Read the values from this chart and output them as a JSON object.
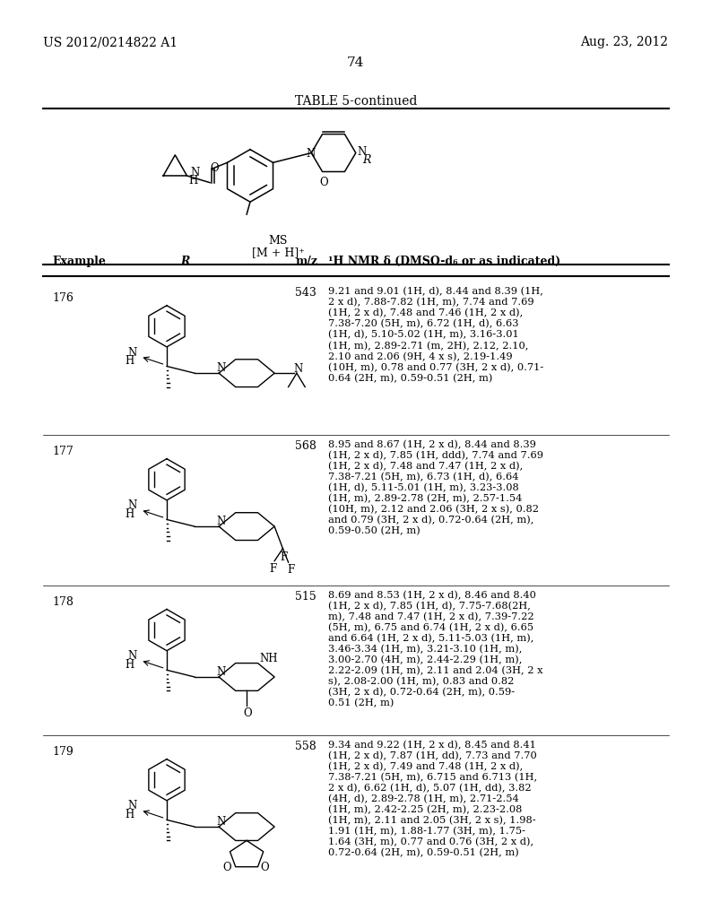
{
  "bg_color": "#ffffff",
  "header_left": "US 2012/0214822 A1",
  "header_right": "Aug. 23, 2012",
  "page_number": "74",
  "table_title": "TABLE 5-continued",
  "rows": [
    {
      "example": "176",
      "mz": "543",
      "nmr": "9.21 and 9.01 (1H, d), 8.44 and 8.39 (1H,\n2 x d), 7.88-7.82 (1H, m), 7.74 and 7.69\n(1H, 2 x d), 7.48 and 7.46 (1H, 2 x d),\n7.38-7.20 (5H, m), 6.72 (1H, d), 6.63\n(1H, d), 5.10-5.02 (1H, m), 3.16-3.01\n(1H, m), 2.89-2.71 (m, 2H), 2.12, 2.10,\n2.10 and 2.06 (9H, 4 x s), 2.19-1.49\n(10H, m), 0.78 and 0.77 (3H, 2 x d), 0.71-\n0.64 (2H, m), 0.59-0.51 (2H, m)"
    },
    {
      "example": "177",
      "mz": "568",
      "nmr": "8.95 and 8.67 (1H, 2 x d), 8.44 and 8.39\n(1H, 2 x d), 7.85 (1H, ddd), 7.74 and 7.69\n(1H, 2 x d), 7.48 and 7.47 (1H, 2 x d),\n7.38-7.21 (5H, m), 6.73 (1H, d), 6.64\n(1H, d), 5.11-5.01 (1H, m), 3.23-3.08\n(1H, m), 2.89-2.78 (2H, m), 2.57-1.54\n(10H, m), 2.12 and 2.06 (3H, 2 x s), 0.82\nand 0.79 (3H, 2 x d), 0.72-0.64 (2H, m),\n0.59-0.50 (2H, m)"
    },
    {
      "example": "178",
      "mz": "515",
      "nmr": "8.69 and 8.53 (1H, 2 x d), 8.46 and 8.40\n(1H, 2 x d), 7.85 (1H, d), 7.75-7.68(2H,\nm), 7.48 and 7.47 (1H, 2 x d), 7.39-7.22\n(5H, m), 6.75 and 6.74 (1H, 2 x d), 6.65\nand 6.64 (1H, 2 x d), 5.11-5.03 (1H, m),\n3.46-3.34 (1H, m), 3.21-3.10 (1H, m),\n3.00-2.70 (4H, m), 2.44-2.29 (1H, m),\n2.22-2.09 (1H, m), 2.11 and 2.04 (3H, 2 x\ns), 2.08-2.00 (1H, m), 0.83 and 0.82\n(3H, 2 x d), 0.72-0.64 (2H, m), 0.59-\n0.51 (2H, m)"
    },
    {
      "example": "179",
      "mz": "558",
      "nmr": "9.34 and 9.22 (1H, 2 x d), 8.45 and 8.41\n(1H, 2 x d), 7.87 (1H, dd), 7.73 and 7.70\n(1H, 2 x d), 7.49 and 7.48 (1H, 2 x d),\n7.38-7.21 (5H, m), 6.715 and 6.713 (1H,\n2 x d), 6.62 (1H, d), 5.07 (1H, dd), 3.82\n(4H, d), 2.89-2.78 (1H, m), 2.71-2.54\n(1H, m), 2.42-2.25 (2H, m), 2.23-2.08\n(1H, m), 2.11 and 2.05 (3H, 2 x s), 1.98-\n1.91 (1H, m), 1.88-1.77 (3H, m), 1.75-\n1.64 (3H, m), 0.77 and 0.76 (3H, 2 x d),\n0.72-0.64 (2H, m), 0.59-0.51 (2H, m)"
    }
  ]
}
